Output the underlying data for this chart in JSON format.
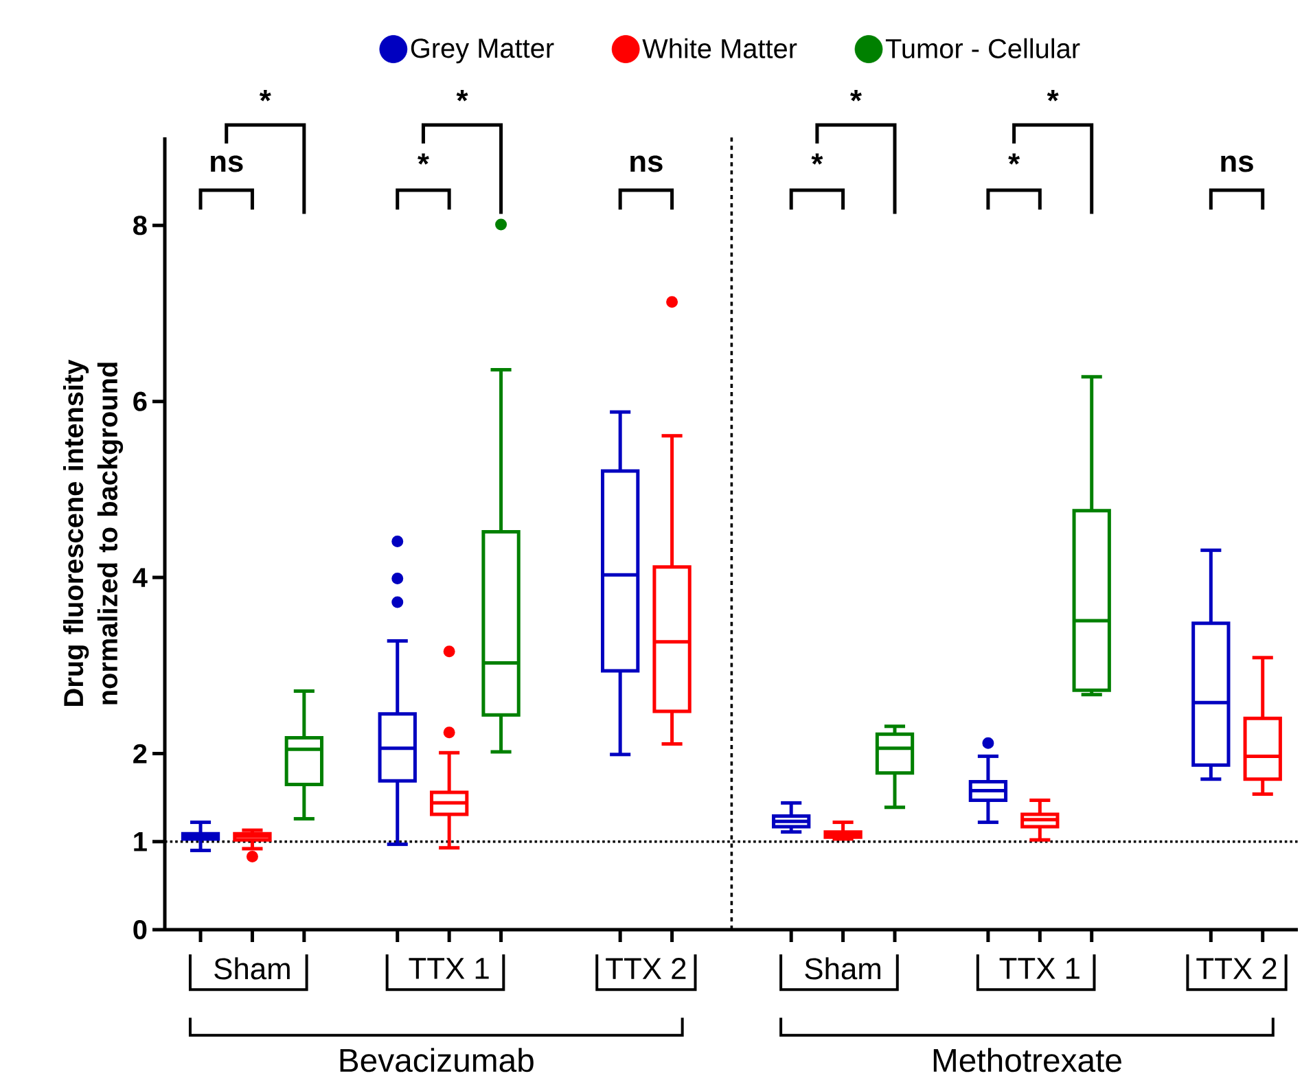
{
  "chart_data": {
    "type": "box",
    "ylabel": "Drug fluorescene intensity normalized to background",
    "categories": [
      "Sham",
      "TTX 1",
      "TTX 2",
      "Sham",
      "TTX 1",
      "TTX 2"
    ],
    "ylim": [
      0,
      9
    ],
    "yticks": [
      0,
      1,
      2,
      4,
      6,
      8
    ],
    "legend": "top",
    "ref_lines": [
      {
        "axis": "y",
        "value": 1,
        "line_style": "dotted"
      }
    ],
    "annotations": [
      "ns",
      "*",
      "*",
      "*",
      "ns",
      "*",
      "*",
      "*",
      "*",
      "ns",
      "Bevacizumab",
      "Methotrexate"
    ],
    "series": [
      {
        "name": "Grey Matter",
        "color": "#0000c0",
        "boxes": [
          {
            "low": 0.9,
            "q1": 1.03,
            "median": 1.06,
            "q3": 1.09,
            "high": 1.22
          },
          {
            "low": 0.97,
            "q1": 1.69,
            "median": 2.06,
            "q3": 2.45,
            "high": 3.28,
            "outliers": [
              4.41,
              3.99,
              3.72
            ]
          },
          {
            "low": 1.99,
            "q1": 2.94,
            "median": 4.03,
            "q3": 5.21,
            "high": 5.88
          },
          {
            "low": 1.11,
            "q1": 1.17,
            "median": 1.23,
            "q3": 1.29,
            "high": 1.44
          },
          {
            "low": 1.22,
            "q1": 1.47,
            "median": 1.58,
            "q3": 1.68,
            "high": 1.97,
            "outliers": [
              2.12
            ]
          },
          {
            "low": 1.71,
            "q1": 1.87,
            "median": 2.58,
            "q3": 3.48,
            "high": 4.31
          }
        ]
      },
      {
        "name": "White Matter",
        "color": "#ff0000",
        "boxes": [
          {
            "low": 0.92,
            "q1": 1.02,
            "median": 1.06,
            "q3": 1.09,
            "high": 1.13,
            "outliers": [
              0.83
            ]
          },
          {
            "low": 0.93,
            "q1": 1.31,
            "median": 1.44,
            "q3": 1.56,
            "high": 2.01,
            "outliers": [
              3.16,
              2.24
            ]
          },
          {
            "low": 2.11,
            "q1": 2.48,
            "median": 3.27,
            "q3": 4.12,
            "high": 5.61,
            "outliers": [
              7.13
            ]
          },
          {
            "low": 1.03,
            "q1": 1.05,
            "median": 1.08,
            "q3": 1.11,
            "high": 1.22
          },
          {
            "low": 1.02,
            "q1": 1.17,
            "median": 1.25,
            "q3": 1.31,
            "high": 1.47
          },
          {
            "low": 1.54,
            "q1": 1.71,
            "median": 1.97,
            "q3": 2.4,
            "high": 3.09
          }
        ]
      },
      {
        "name": "Tumor - Cellular",
        "color": "#008000",
        "boxes": [
          {
            "low": 1.26,
            "q1": 1.65,
            "median": 2.05,
            "q3": 2.18,
            "high": 2.71
          },
          {
            "low": 2.02,
            "q1": 2.44,
            "median": 3.03,
            "q3": 4.52,
            "high": 6.36,
            "outliers": [
              8.01
            ]
          },
          null,
          {
            "low": 1.39,
            "q1": 1.78,
            "median": 2.06,
            "q3": 2.22,
            "high": 2.31
          },
          {
            "low": 2.67,
            "q1": 2.72,
            "median": 3.51,
            "q3": 4.76,
            "high": 6.28
          },
          null
        ]
      }
    ]
  }
}
